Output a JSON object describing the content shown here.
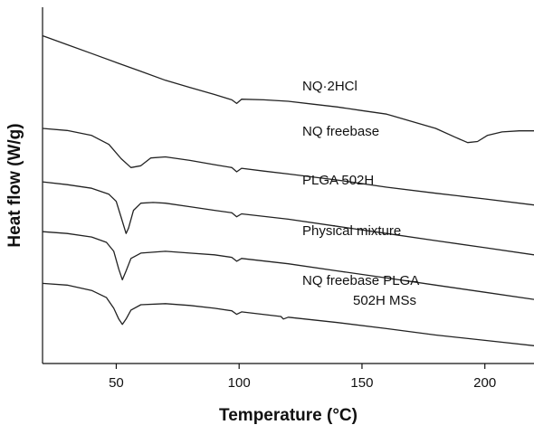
{
  "chart_data": {
    "type": "line",
    "xlabel": "Temperature (°C)",
    "ylabel": "Heat flow (W/g)",
    "xlim": [
      20,
      220
    ],
    "xticks": [
      50,
      100,
      150,
      200
    ],
    "yticks_shown": false,
    "grid": false,
    "legend": "inline labels next to each curve",
    "line_color": "#222222",
    "series": [
      {
        "name": "NQ·2HCl",
        "label_lines": [
          "NQ·2HCl"
        ],
        "points": [
          [
            20,
            0.84
          ],
          [
            30,
            0.815
          ],
          [
            40,
            0.79
          ],
          [
            50,
            0.765
          ],
          [
            60,
            0.74
          ],
          [
            70,
            0.715
          ],
          [
            80,
            0.695
          ],
          [
            90,
            0.675
          ],
          [
            97,
            0.66
          ],
          [
            99,
            0.65
          ],
          [
            101,
            0.662
          ],
          [
            110,
            0.66
          ],
          [
            120,
            0.656
          ],
          [
            130,
            0.648
          ],
          [
            140,
            0.64
          ],
          [
            150,
            0.63
          ],
          [
            160,
            0.62
          ],
          [
            170,
            0.6
          ],
          [
            180,
            0.58
          ],
          [
            188,
            0.555
          ],
          [
            193,
            0.54
          ],
          [
            197,
            0.543
          ],
          [
            201,
            0.56
          ],
          [
            207,
            0.57
          ],
          [
            214,
            0.573
          ],
          [
            220,
            0.573
          ]
        ]
      },
      {
        "name": "NQ freebase",
        "label_lines": [
          "NQ freebase"
        ],
        "points": [
          [
            20,
            0.58
          ],
          [
            30,
            0.574
          ],
          [
            40,
            0.56
          ],
          [
            47,
            0.535
          ],
          [
            52,
            0.495
          ],
          [
            56,
            0.47
          ],
          [
            60,
            0.475
          ],
          [
            64,
            0.497
          ],
          [
            70,
            0.5
          ],
          [
            80,
            0.49
          ],
          [
            90,
            0.478
          ],
          [
            97,
            0.47
          ],
          [
            99,
            0.458
          ],
          [
            101,
            0.468
          ],
          [
            110,
            0.46
          ],
          [
            120,
            0.452
          ],
          [
            140,
            0.435
          ],
          [
            160,
            0.415
          ],
          [
            180,
            0.398
          ],
          [
            200,
            0.382
          ],
          [
            220,
            0.365
          ]
        ]
      },
      {
        "name": "PLGA 502H",
        "label_lines": [
          "PLGA 502H"
        ],
        "points": [
          [
            20,
            0.43
          ],
          [
            30,
            0.422
          ],
          [
            40,
            0.412
          ],
          [
            47,
            0.395
          ],
          [
            50,
            0.375
          ],
          [
            52,
            0.33
          ],
          [
            54,
            0.285
          ],
          [
            55,
            0.3
          ],
          [
            57,
            0.35
          ],
          [
            60,
            0.37
          ],
          [
            65,
            0.372
          ],
          [
            70,
            0.37
          ],
          [
            80,
            0.36
          ],
          [
            90,
            0.35
          ],
          [
            97,
            0.343
          ],
          [
            99,
            0.332
          ],
          [
            101,
            0.34
          ],
          [
            120,
            0.325
          ],
          [
            140,
            0.305
          ],
          [
            160,
            0.285
          ],
          [
            180,
            0.265
          ],
          [
            200,
            0.245
          ],
          [
            220,
            0.225
          ]
        ]
      },
      {
        "name": "Physical mixture",
        "label_lines": [
          "Physical mixture"
        ],
        "points": [
          [
            20,
            0.29
          ],
          [
            30,
            0.285
          ],
          [
            40,
            0.275
          ],
          [
            46,
            0.26
          ],
          [
            49,
            0.235
          ],
          [
            51,
            0.185
          ],
          [
            52.5,
            0.155
          ],
          [
            54,
            0.18
          ],
          [
            56,
            0.215
          ],
          [
            60,
            0.23
          ],
          [
            70,
            0.235
          ],
          [
            80,
            0.23
          ],
          [
            90,
            0.225
          ],
          [
            97,
            0.218
          ],
          [
            99,
            0.207
          ],
          [
            101,
            0.215
          ],
          [
            120,
            0.2
          ],
          [
            140,
            0.18
          ],
          [
            160,
            0.16
          ],
          [
            180,
            0.14
          ],
          [
            200,
            0.12
          ],
          [
            220,
            0.1
          ]
        ]
      },
      {
        "name": "NQ freebase PLGA 502H MSs",
        "label_lines": [
          "NQ freebase PLGA",
          "502H MSs"
        ],
        "points": [
          [
            20,
            0.145
          ],
          [
            30,
            0.14
          ],
          [
            40,
            0.125
          ],
          [
            46,
            0.105
          ],
          [
            49,
            0.075
          ],
          [
            51,
            0.045
          ],
          [
            52.5,
            0.03
          ],
          [
            54,
            0.045
          ],
          [
            56,
            0.07
          ],
          [
            60,
            0.085
          ],
          [
            70,
            0.088
          ],
          [
            80,
            0.083
          ],
          [
            90,
            0.075
          ],
          [
            97,
            0.068
          ],
          [
            99,
            0.058
          ],
          [
            101,
            0.065
          ],
          [
            117,
            0.052
          ],
          [
            118,
            0.045
          ],
          [
            120,
            0.05
          ],
          [
            140,
            0.035
          ],
          [
            160,
            0.018
          ],
          [
            180,
            0.0
          ],
          [
            200,
            -0.015
          ],
          [
            220,
            -0.03
          ]
        ]
      }
    ]
  }
}
